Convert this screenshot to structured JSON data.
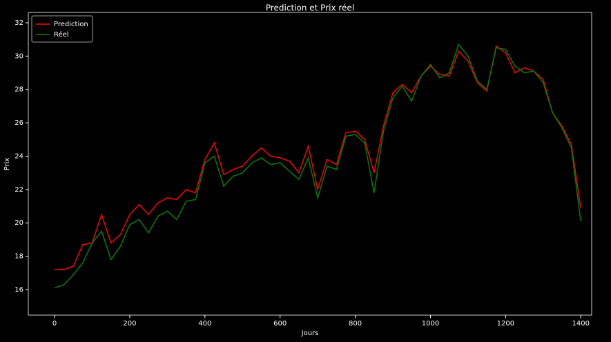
{
  "chart_data": {
    "type": "line",
    "title": "Prediction et Prix réel",
    "xlabel": "Jours",
    "ylabel": "Prix",
    "x": [
      0,
      25,
      50,
      75,
      100,
      125,
      150,
      175,
      200,
      225,
      250,
      275,
      300,
      325,
      350,
      375,
      400,
      425,
      450,
      475,
      500,
      525,
      550,
      575,
      600,
      625,
      650,
      675,
      700,
      725,
      750,
      775,
      800,
      825,
      850,
      875,
      900,
      925,
      950,
      975,
      1000,
      1025,
      1050,
      1075,
      1100,
      1125,
      1150,
      1175,
      1200,
      1225,
      1250,
      1275,
      1300,
      1325,
      1350,
      1375,
      1400
    ],
    "series": [
      {
        "name": "Prediction",
        "color": "#ff0000",
        "values": [
          17.2,
          17.2,
          17.4,
          18.7,
          18.8,
          20.5,
          18.8,
          19.3,
          20.5,
          21.1,
          20.5,
          21.2,
          21.5,
          21.4,
          22.0,
          21.8,
          23.8,
          24.8,
          22.9,
          23.2,
          23.4,
          24.0,
          24.5,
          24.0,
          23.9,
          23.7,
          23.0,
          24.6,
          22.0,
          23.8,
          23.5,
          25.4,
          25.5,
          25.0,
          23.0,
          25.8,
          27.8,
          28.3,
          27.8,
          28.8,
          29.4,
          28.9,
          28.8,
          30.3,
          29.7,
          28.4,
          27.9,
          30.6,
          30.2,
          29.0,
          29.3,
          29.1,
          28.6,
          26.6,
          25.8,
          24.7,
          20.9
        ]
      },
      {
        "name": "Réel",
        "color": "#008000",
        "values": [
          16.1,
          16.3,
          16.9,
          17.6,
          18.8,
          19.5,
          17.8,
          18.6,
          19.9,
          20.2,
          19.4,
          20.4,
          20.7,
          20.2,
          21.3,
          21.4,
          23.6,
          24.0,
          22.2,
          22.8,
          23.0,
          23.6,
          23.9,
          23.5,
          23.6,
          23.1,
          22.6,
          23.9,
          21.5,
          23.4,
          23.2,
          25.2,
          25.3,
          24.8,
          21.8,
          25.5,
          27.5,
          28.2,
          27.3,
          28.8,
          29.5,
          28.7,
          29.0,
          30.7,
          30.0,
          28.5,
          28.0,
          30.5,
          30.4,
          29.4,
          29.0,
          29.1,
          28.4,
          26.6,
          25.7,
          24.5,
          20.1
        ]
      }
    ],
    "xlim": [
      -70,
      1429
    ],
    "ylim": [
      14.47,
      32.62
    ],
    "xticks": [
      0,
      200,
      400,
      600,
      800,
      1000,
      1200,
      1400
    ],
    "yticks": [
      16,
      18,
      20,
      22,
      24,
      26,
      28,
      30,
      32
    ],
    "legend": "upper left",
    "grid": false
  }
}
